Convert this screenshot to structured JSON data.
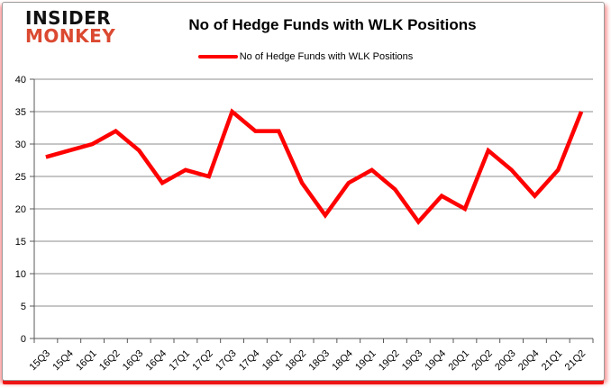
{
  "logo": {
    "line1": "INSIDER",
    "line2": "MONKEY"
  },
  "header": {
    "title": "No of Hedge Funds with WLK Positions"
  },
  "legend": {
    "label": "No of Hedge Funds with WLK Positions",
    "color": "#ff0000"
  },
  "chart_data": {
    "type": "line",
    "title": "No of Hedge Funds with WLK Positions",
    "categories": [
      "15Q3",
      "15Q4",
      "16Q1",
      "16Q2",
      "16Q3",
      "16Q4",
      "17Q1",
      "17Q2",
      "17Q3",
      "17Q4",
      "18Q1",
      "18Q2",
      "18Q3",
      "18Q4",
      "19Q1",
      "19Q2",
      "19Q3",
      "19Q4",
      "20Q1",
      "20Q2",
      "20Q3",
      "20Q4",
      "21Q1",
      "21Q2"
    ],
    "series": [
      {
        "name": "No of Hedge Funds with WLK Positions",
        "color": "#ff0000",
        "values": [
          28,
          29,
          30,
          32,
          29,
          24,
          26,
          25,
          35,
          32,
          32,
          24,
          19,
          24,
          26,
          23,
          18,
          22,
          20,
          29,
          26,
          22,
          26,
          35
        ]
      }
    ],
    "xlabel": "",
    "ylabel": "",
    "ylim": [
      0,
      40
    ],
    "ytick_step": 5,
    "grid": true,
    "legend_position": "top"
  },
  "colors": {
    "line": "#ff0000",
    "grid": "#8c8c8c",
    "axis": "#595959",
    "text": "#000000",
    "logo_black": "#111111",
    "logo_red": "#db4931",
    "frame_border": "#9b9b9b",
    "frame_glow": "#ee1414"
  }
}
